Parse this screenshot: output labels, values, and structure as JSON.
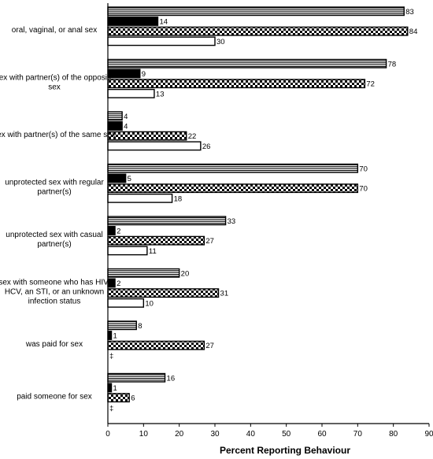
{
  "chart_data": {
    "type": "bar",
    "orientation": "horizontal",
    "xlabel": "Percent Reporting Behaviour",
    "xlim": [
      0,
      90
    ],
    "xticks": [
      "0",
      "10",
      "20",
      "30",
      "40",
      "50",
      "60",
      "70",
      "80",
      "90"
    ],
    "grid": false,
    "legend": "none",
    "categories": [
      "oral, vaginal, or anal sex",
      "sex with partner(s) of the opposite sex",
      "sex with partner(s) of the same sex",
      "unprotected sex with regular partner(s)",
      "unprotected sex with casual partner(s)",
      "sex with someone who has HIV, HCV, an STI, or an unknown infection status",
      "was paid for sex",
      "paid someone for sex"
    ],
    "category_lines": [
      [
        "oral, vaginal, or anal sex"
      ],
      [
        "sex with partner(s) of the opposite",
        "sex"
      ],
      [
        "sex with partner(s) of the same sex"
      ],
      [
        "unprotected sex with regular",
        "partner(s)"
      ],
      [
        "unprotected sex with casual",
        "partner(s)"
      ],
      [
        "sex with someone who has HIV,",
        "HCV, an STI, or an unknown",
        "infection status"
      ],
      [
        "was paid for sex"
      ],
      [
        "paid someone for sex"
      ]
    ],
    "series": [
      {
        "pattern": "horizontal-stripes",
        "values": [
          83,
          78,
          4,
          70,
          33,
          20,
          8,
          16
        ],
        "labels": [
          "83",
          "78",
          "4",
          "70",
          "33",
          "20",
          "8",
          "16"
        ]
      },
      {
        "pattern": "solid-black",
        "values": [
          14,
          9,
          4,
          5,
          2,
          2,
          1,
          1
        ],
        "labels": [
          "14",
          "9",
          "4",
          "5",
          "2",
          "2",
          "1",
          "1"
        ]
      },
      {
        "pattern": "checkerboard",
        "values": [
          84,
          72,
          22,
          70,
          27,
          31,
          27,
          6
        ],
        "labels": [
          "84",
          "72",
          "22",
          "70",
          "27",
          "31",
          "27",
          "6"
        ]
      },
      {
        "pattern": "white",
        "values": [
          30,
          13,
          26,
          18,
          11,
          10,
          0,
          0
        ],
        "labels": [
          "30",
          "13",
          "26",
          "18",
          "11",
          "10",
          "‡",
          "‡"
        ]
      }
    ],
    "colors": {
      "bar_outline": "#000000",
      "solid": "#000000",
      "background": "#ffffff"
    }
  }
}
